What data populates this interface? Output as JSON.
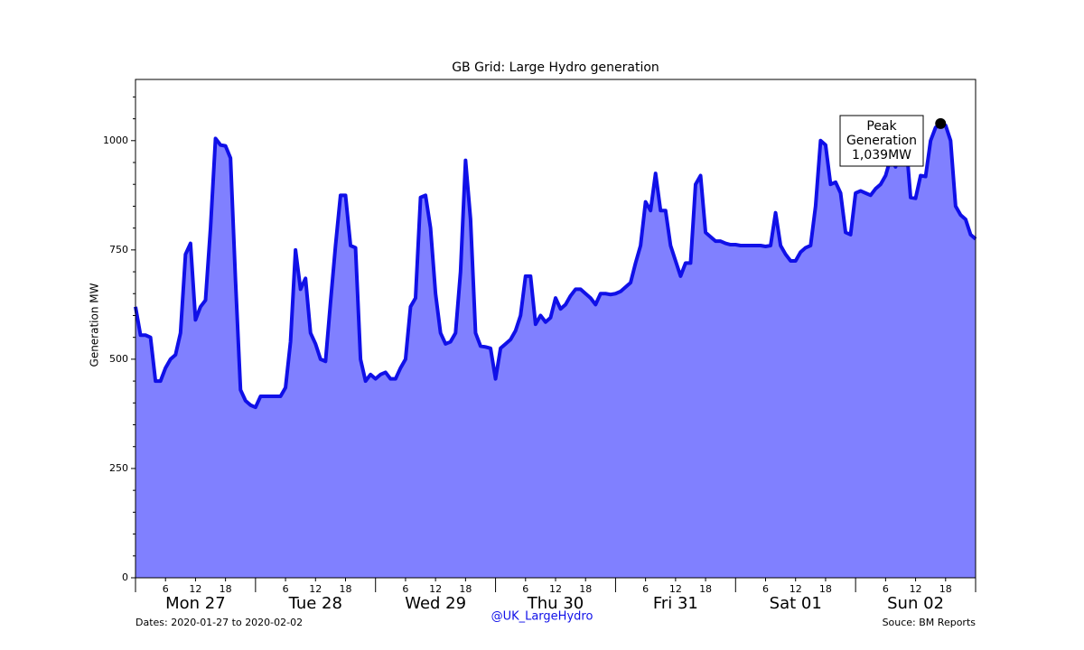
{
  "chart_data": {
    "type": "area",
    "title": "GB Grid: Large Hydro generation",
    "y_label": "Generation MW",
    "x": [
      0,
      1,
      2,
      3,
      4,
      5,
      6,
      7,
      8,
      9,
      10,
      11,
      12,
      13,
      14,
      15,
      16,
      17,
      18,
      19,
      20,
      21,
      22,
      23,
      24,
      25,
      26,
      27,
      28,
      29,
      30,
      31,
      32,
      33,
      34,
      35,
      36,
      37,
      38,
      39,
      40,
      41,
      42,
      43,
      44,
      45,
      46,
      47,
      48,
      49,
      50,
      51,
      52,
      53,
      54,
      55,
      56,
      57,
      58,
      59,
      60,
      61,
      62,
      63,
      64,
      65,
      66,
      67,
      68,
      69,
      70,
      71,
      72,
      73,
      74,
      75,
      76,
      77,
      78,
      79,
      80,
      81,
      82,
      83,
      84,
      85,
      86,
      87,
      88,
      89,
      90,
      91,
      92,
      93,
      94,
      95,
      96,
      97,
      98,
      99,
      100,
      101,
      102,
      103,
      104,
      105,
      106,
      107,
      108,
      109,
      110,
      111,
      112,
      113,
      114,
      115,
      116,
      117,
      118,
      119,
      120,
      121,
      122,
      123,
      124,
      125,
      126,
      127,
      128,
      129,
      130,
      131,
      132,
      133,
      134,
      135,
      136,
      137,
      138,
      139,
      140,
      141,
      142,
      143,
      144,
      145,
      146,
      147,
      148,
      149,
      150,
      151,
      152,
      153,
      154,
      155,
      156,
      157,
      158,
      159,
      160,
      161,
      162,
      163,
      164,
      165,
      166,
      167,
      168
    ],
    "values": [
      620,
      555,
      555,
      550,
      450,
      450,
      480,
      500,
      510,
      560,
      740,
      765,
      590,
      620,
      635,
      800,
      1005,
      990,
      988,
      960,
      680,
      430,
      405,
      395,
      390,
      415,
      415,
      415,
      415,
      415,
      435,
      540,
      750,
      660,
      685,
      560,
      535,
      500,
      495,
      630,
      760,
      875,
      875,
      760,
      755,
      500,
      450,
      465,
      455,
      465,
      470,
      455,
      455,
      480,
      500,
      620,
      640,
      870,
      875,
      800,
      650,
      560,
      535,
      540,
      560,
      700,
      955,
      820,
      560,
      530,
      528,
      525,
      455,
      525,
      535,
      545,
      565,
      600,
      690,
      690,
      580,
      600,
      585,
      595,
      640,
      615,
      625,
      645,
      660,
      660,
      650,
      640,
      625,
      650,
      650,
      648,
      650,
      655,
      665,
      675,
      720,
      760,
      860,
      840,
      925,
      840,
      840,
      760,
      725,
      690,
      720,
      720,
      900,
      920,
      790,
      780,
      770,
      770,
      765,
      762,
      762,
      760,
      760,
      760,
      760,
      760,
      758,
      760,
      835,
      760,
      740,
      725,
      725,
      745,
      755,
      760,
      850,
      1000,
      990,
      900,
      905,
      880,
      790,
      785,
      880,
      885,
      880,
      875,
      890,
      900,
      920,
      960,
      940,
      1020,
      1010,
      870,
      868,
      920,
      918,
      1000,
      1030,
      1039,
      1035,
      1000,
      850,
      830,
      820,
      785,
      775
    ],
    "color": "#1010e8",
    "fill_color": "#8080ff",
    "xlim": [
      0,
      168
    ],
    "ylim": [
      0,
      1140
    ],
    "yticks": [
      0,
      250,
      500,
      750,
      1000
    ],
    "y_minor_ticks": [
      50,
      100,
      150,
      200,
      300,
      350,
      400,
      450,
      550,
      600,
      650,
      700,
      800,
      850,
      900,
      950,
      1050,
      1100
    ],
    "xticks": [
      {
        "value": 6,
        "label": "6"
      },
      {
        "value": 12,
        "label": "12"
      },
      {
        "value": 18,
        "label": "18"
      },
      {
        "value": 30,
        "label": "6"
      },
      {
        "value": 36,
        "label": "12"
      },
      {
        "value": 42,
        "label": "18"
      },
      {
        "value": 54,
        "label": "6"
      },
      {
        "value": 60,
        "label": "12"
      },
      {
        "value": 66,
        "label": "18"
      },
      {
        "value": 78,
        "label": "6"
      },
      {
        "value": 84,
        "label": "12"
      },
      {
        "value": 90,
        "label": "18"
      },
      {
        "value": 102,
        "label": "6"
      },
      {
        "value": 108,
        "label": "12"
      },
      {
        "value": 114,
        "label": "18"
      },
      {
        "value": 126,
        "label": "6"
      },
      {
        "value": 132,
        "label": "12"
      },
      {
        "value": 138,
        "label": "18"
      },
      {
        "value": 150,
        "label": "6"
      },
      {
        "value": 156,
        "label": "12"
      },
      {
        "value": 162,
        "label": "18"
      }
    ],
    "day_ticks": [
      0,
      24,
      48,
      72,
      96,
      120,
      144,
      168
    ],
    "day_labels": [
      {
        "value": 12,
        "label": "Mon 27"
      },
      {
        "value": 36,
        "label": "Tue 28"
      },
      {
        "value": 60,
        "label": "Wed 29"
      },
      {
        "value": 84,
        "label": "Thu 30"
      },
      {
        "value": 108,
        "label": "Fri 31"
      },
      {
        "value": 132,
        "label": "Sat 01"
      },
      {
        "value": 156,
        "label": "Sun 02"
      }
    ],
    "annotation": {
      "lines": [
        "Peak",
        "Generation",
        "1,039MW"
      ],
      "x": 161,
      "y": 1039
    },
    "footer": {
      "left": "Dates: 2020-01-27 to 2020-02-02",
      "center": "@UK_LargeHydro",
      "right": "Souce: BM Reports"
    }
  }
}
